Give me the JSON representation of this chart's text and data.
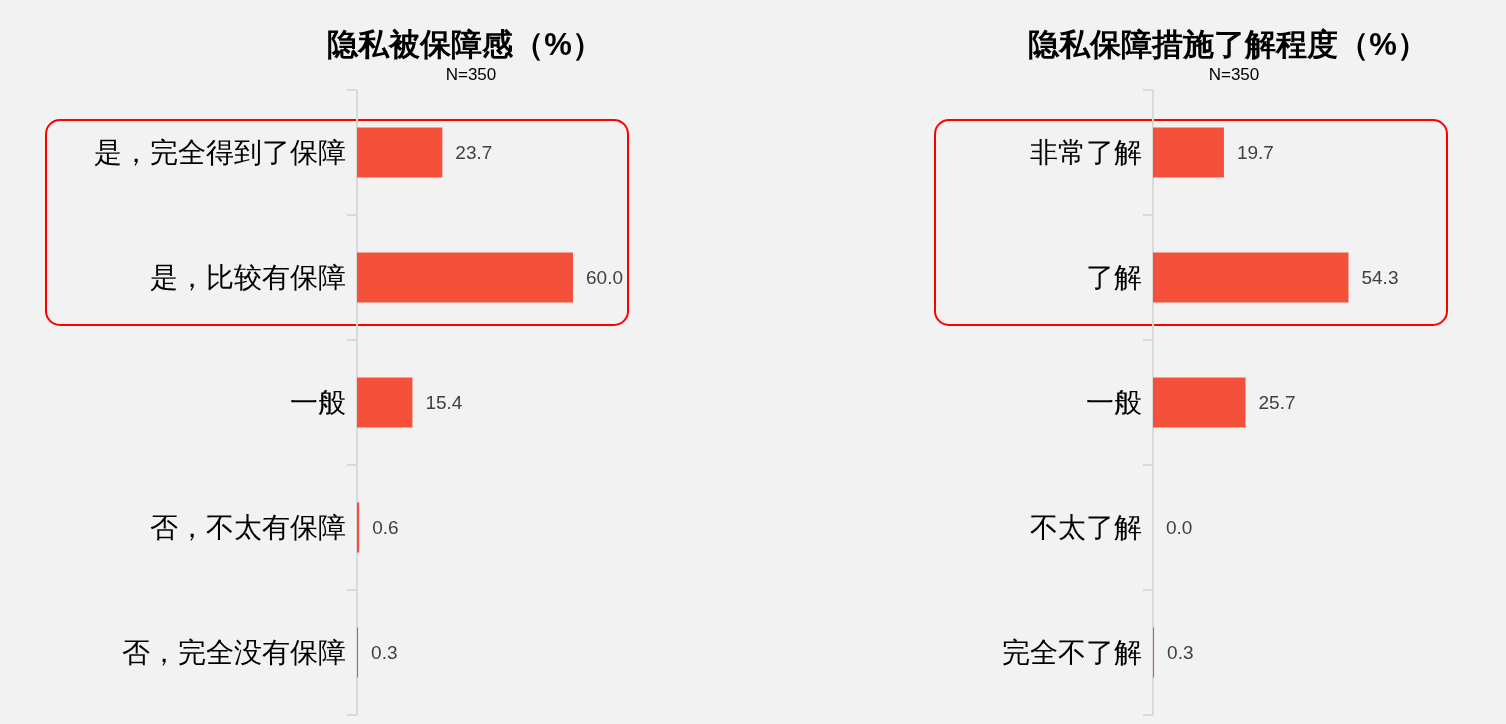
{
  "chart_data": [
    {
      "type": "bar",
      "orientation": "horizontal",
      "title": "隐私被保障感（%）",
      "subtitle": "N=350",
      "categories": [
        "是，完全得到了保障",
        "是，比较有保障",
        "一般",
        "否，不太有保障",
        "否，完全没有保障"
      ],
      "values": [
        23.7,
        60.0,
        15.4,
        0.6,
        0.3
      ],
      "value_labels": [
        "23.7",
        "60.0",
        "15.4",
        "0.6",
        "0.3"
      ],
      "color": "#f5513a"
    },
    {
      "type": "bar",
      "orientation": "horizontal",
      "title": "隐私保障措施了解程度（%）",
      "subtitle": "N=350",
      "categories": [
        "非常了解",
        "了解",
        "一般",
        "不太了解",
        "完全不了解"
      ],
      "values": [
        19.7,
        54.3,
        25.7,
        0.0,
        0.3
      ],
      "value_labels": [
        "19.7",
        "54.3",
        "25.7",
        "0.0",
        "0.3"
      ],
      "color": "#f5513a"
    }
  ]
}
